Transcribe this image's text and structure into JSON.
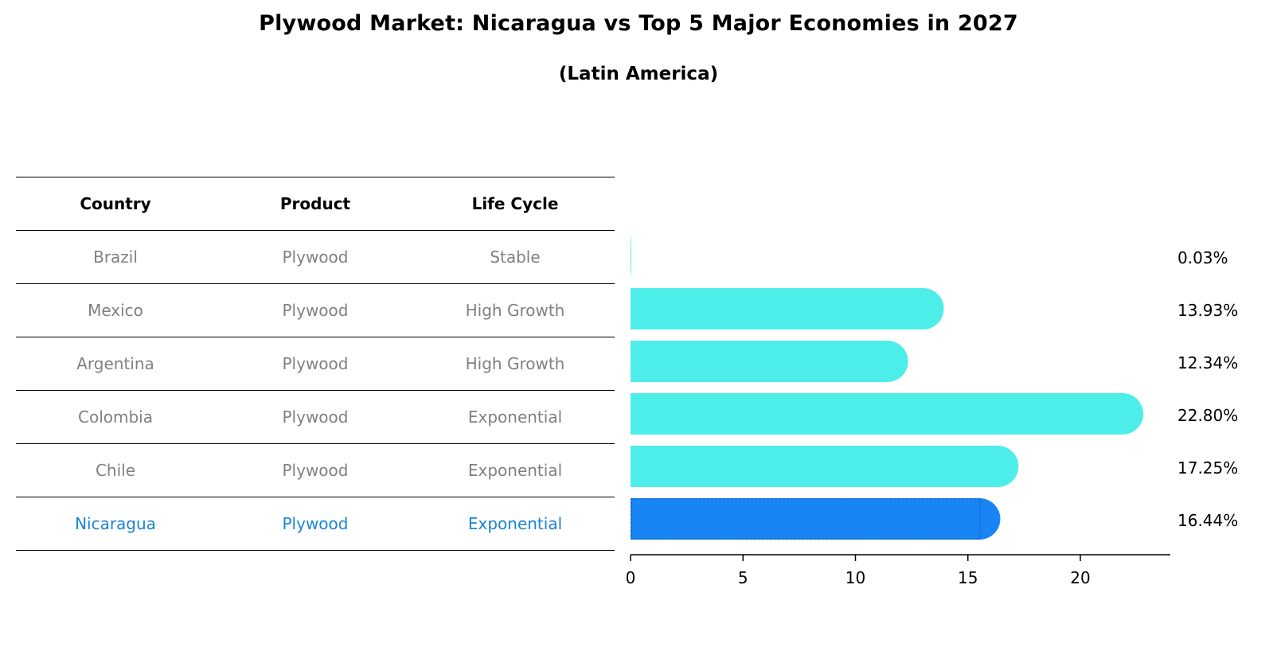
{
  "header": {
    "title": "Plywood Market: Nicaragua vs Top 5 Major Economies in 2027",
    "subtitle": "(Latin America)"
  },
  "table": {
    "columns": [
      "Country",
      "Product",
      "Life Cycle"
    ],
    "rows": [
      {
        "country": "Brazil",
        "product": "Plywood",
        "life_cycle": "Stable"
      },
      {
        "country": "Mexico",
        "product": "Plywood",
        "life_cycle": "High Growth"
      },
      {
        "country": "Argentina",
        "product": "Plywood",
        "life_cycle": "High Growth"
      },
      {
        "country": "Colombia",
        "product": "Plywood",
        "life_cycle": "Exponential"
      },
      {
        "country": "Chile",
        "product": "Plywood",
        "life_cycle": "Exponential"
      },
      {
        "country": "Nicaragua",
        "product": "Plywood",
        "life_cycle": "Exponential"
      }
    ],
    "highlight_row": 5
  },
  "colors": {
    "bar": "#4deee9",
    "highlight_bar": "#1985f4",
    "highlight_text": "#1a85d6",
    "muted_text": "#808080"
  },
  "chart_data": {
    "type": "bar",
    "orientation": "horizontal",
    "categories": [
      "Brazil",
      "Mexico",
      "Argentina",
      "Colombia",
      "Chile",
      "Nicaragua"
    ],
    "values": [
      0.03,
      13.93,
      12.34,
      22.8,
      17.25,
      16.44
    ],
    "value_labels": [
      "0.03%",
      "13.93%",
      "12.34%",
      "22.80%",
      "17.25%",
      "16.44%"
    ],
    "highlight": "Nicaragua",
    "xlim": [
      0,
      24
    ],
    "xticks": [
      0,
      5,
      10,
      15,
      20
    ],
    "xtick_labels": [
      "0",
      "5",
      "10",
      "15",
      "20"
    ],
    "title": "Plywood Market: Nicaragua vs Top 5 Major Economies in 2027",
    "subtitle": "(Latin America)",
    "xlabel": "",
    "ylabel": "",
    "grid": false
  }
}
